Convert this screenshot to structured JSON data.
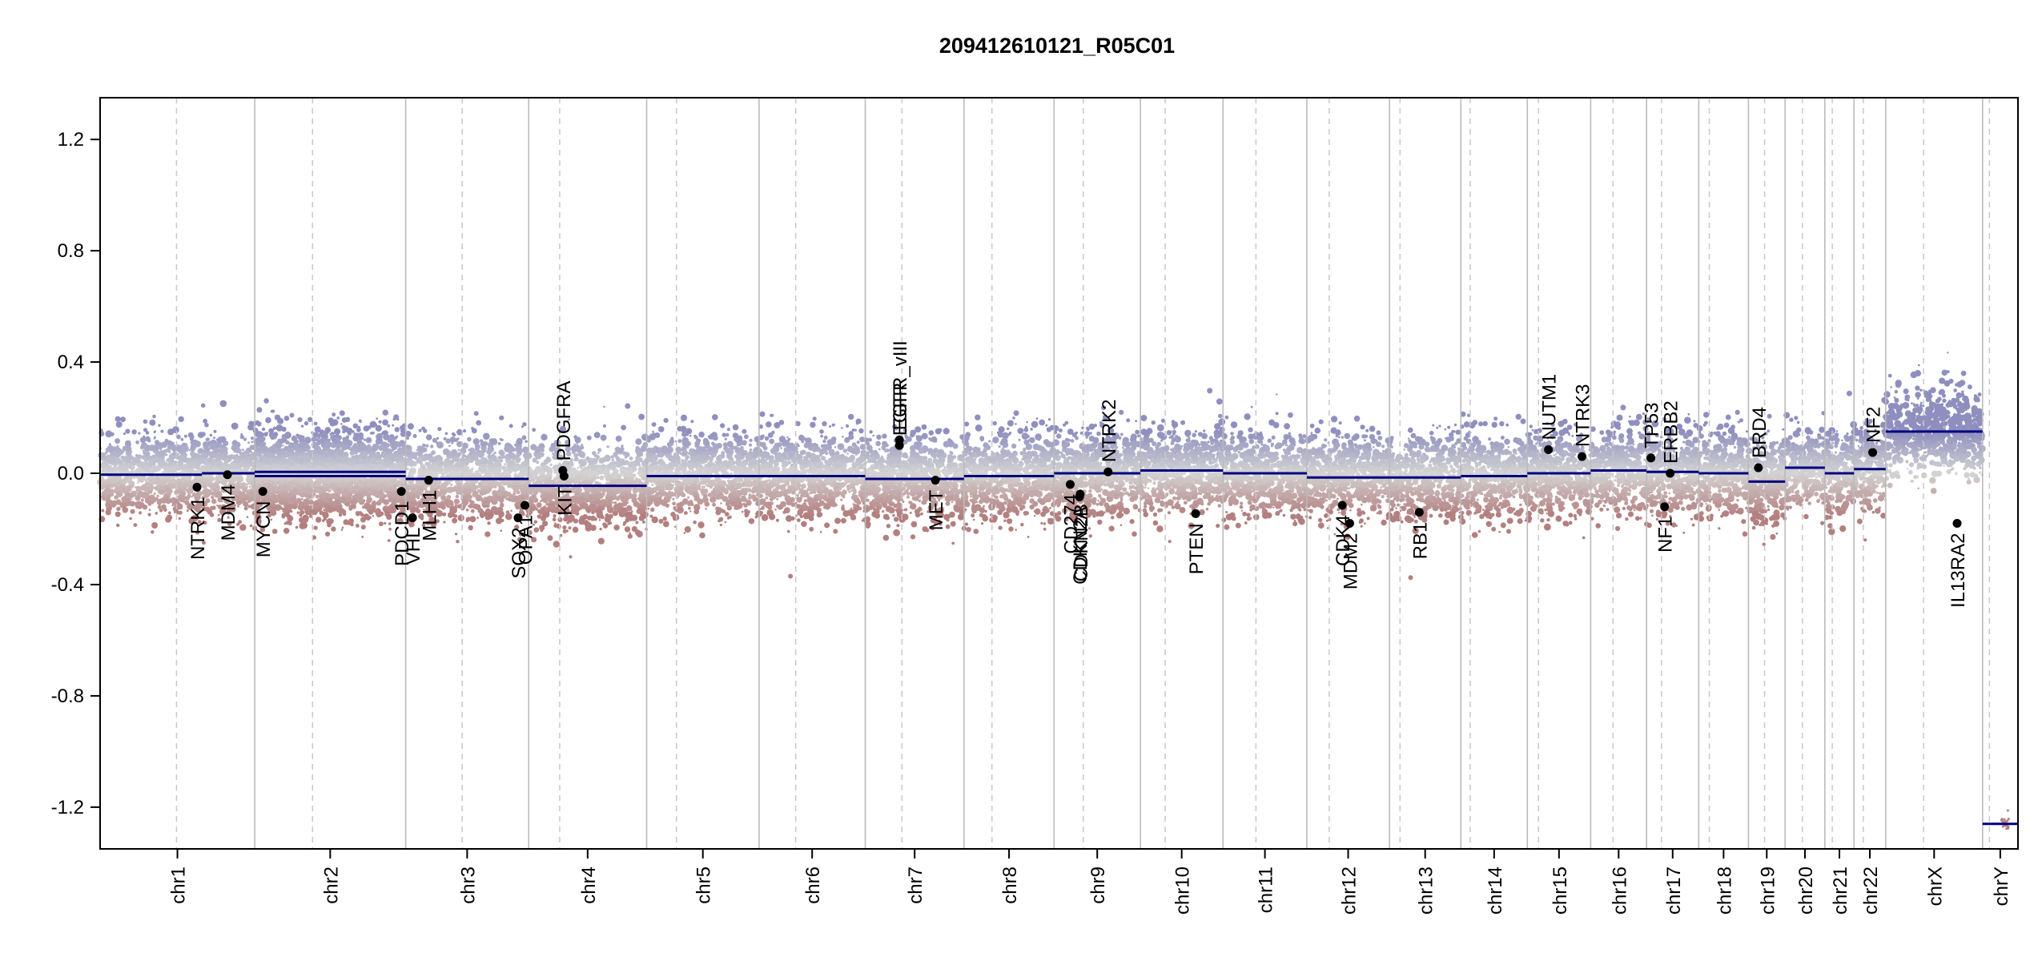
{
  "chart_data": {
    "type": "scatter",
    "title": "209412610121_R05C01",
    "xlabel": "",
    "ylabel": "",
    "ylim": [
      -1.35,
      1.35
    ],
    "yticks": [
      1.2,
      0.8,
      0.4,
      0.0,
      -0.4,
      -0.8,
      -1.2
    ],
    "ytick_labels": [
      "1.2",
      "0.8",
      "0.4",
      "0.0",
      "-0.4",
      "-0.8",
      "-1.2"
    ],
    "grid": false,
    "chromosomes": [
      {
        "name": "chr1",
        "start": 0,
        "end": 249,
        "label": "chr1"
      },
      {
        "name": "chr2",
        "start": 249,
        "end": 492,
        "label": "chr2"
      },
      {
        "name": "chr3",
        "start": 492,
        "end": 690,
        "label": "chr3"
      },
      {
        "name": "chr4",
        "start": 690,
        "end": 880,
        "label": "chr4"
      },
      {
        "name": "chr5",
        "start": 880,
        "end": 1061,
        "label": "chr5"
      },
      {
        "name": "chr6",
        "start": 1061,
        "end": 1232,
        "label": "chr6"
      },
      {
        "name": "chr7",
        "start": 1232,
        "end": 1391,
        "label": "chr7"
      },
      {
        "name": "chr8",
        "start": 1391,
        "end": 1536,
        "label": "chr8"
      },
      {
        "name": "chr9",
        "start": 1536,
        "end": 1675,
        "label": "chr9"
      },
      {
        "name": "chr10",
        "start": 1675,
        "end": 1808,
        "label": "chr10"
      },
      {
        "name": "chr11",
        "start": 1808,
        "end": 1943,
        "label": "chr11"
      },
      {
        "name": "chr12",
        "start": 1943,
        "end": 2076,
        "label": "chr12"
      },
      {
        "name": "chr13",
        "start": 2076,
        "end": 2191,
        "label": "chr13"
      },
      {
        "name": "chr14",
        "start": 2191,
        "end": 2298,
        "label": "chr14"
      },
      {
        "name": "chr15",
        "start": 2298,
        "end": 2400,
        "label": "chr15"
      },
      {
        "name": "chr16",
        "start": 2400,
        "end": 2490,
        "label": "chr16"
      },
      {
        "name": "chr17",
        "start": 2490,
        "end": 2574,
        "label": "chr17"
      },
      {
        "name": "chr18",
        "start": 2574,
        "end": 2654,
        "label": "chr18"
      },
      {
        "name": "chr19",
        "start": 2654,
        "end": 2713,
        "label": "chr19"
      },
      {
        "name": "chr20",
        "start": 2713,
        "end": 2777,
        "label": "chr20"
      },
      {
        "name": "chr21",
        "start": 2777,
        "end": 2824,
        "label": "chr21"
      },
      {
        "name": "chr22",
        "start": 2824,
        "end": 2875,
        "label": "chr22"
      },
      {
        "name": "chrX",
        "start": 2875,
        "end": 3031,
        "label": "chrX"
      },
      {
        "name": "chrY",
        "start": 3031,
        "end": 3088,
        "label": "chrY"
      }
    ],
    "centromeres": [
      123,
      342,
      583,
      740,
      928,
      1120,
      1291,
      1436,
      1583,
      1715,
      1861,
      1979,
      2093,
      2206,
      2316,
      2436,
      2514,
      2591,
      2680,
      2741,
      2789,
      2839,
      2936,
      3042
    ],
    "segments": [
      {
        "chrom": "chr1",
        "start": 0,
        "end": 164,
        "value": -0.005
      },
      {
        "chrom": "chr1",
        "start": 164,
        "end": 249,
        "value": 0.0
      },
      {
        "chrom": "chr2",
        "start": 249,
        "end": 492,
        "value": 0.005
      },
      {
        "chrom": "chr2",
        "start": 249,
        "end": 492,
        "value": -0.01
      },
      {
        "chrom": "chr3",
        "start": 492,
        "end": 690,
        "value": -0.02
      },
      {
        "chrom": "chr4",
        "start": 690,
        "end": 880,
        "value": -0.045
      },
      {
        "chrom": "chr5",
        "start": 880,
        "end": 1061,
        "value": -0.01
      },
      {
        "chrom": "chr6",
        "start": 1061,
        "end": 1232,
        "value": -0.01
      },
      {
        "chrom": "chr7",
        "start": 1232,
        "end": 1391,
        "value": -0.02
      },
      {
        "chrom": "chr8",
        "start": 1391,
        "end": 1536,
        "value": -0.01
      },
      {
        "chrom": "chr9",
        "start": 1536,
        "end": 1675,
        "value": 0.0
      },
      {
        "chrom": "chr10",
        "start": 1675,
        "end": 1808,
        "value": 0.01
      },
      {
        "chrom": "chr11",
        "start": 1808,
        "end": 1943,
        "value": 0.0
      },
      {
        "chrom": "chr12",
        "start": 1943,
        "end": 2076,
        "value": -0.015
      },
      {
        "chrom": "chr13",
        "start": 2076,
        "end": 2191,
        "value": -0.015
      },
      {
        "chrom": "chr14",
        "start": 2191,
        "end": 2298,
        "value": -0.01
      },
      {
        "chrom": "chr15",
        "start": 2298,
        "end": 2400,
        "value": 0.0
      },
      {
        "chrom": "chr16",
        "start": 2400,
        "end": 2490,
        "value": 0.01
      },
      {
        "chrom": "chr17",
        "start": 2490,
        "end": 2574,
        "value": 0.005
      },
      {
        "chrom": "chr18",
        "start": 2574,
        "end": 2654,
        "value": 0.0
      },
      {
        "chrom": "chr19",
        "start": 2654,
        "end": 2713,
        "value": -0.03
      },
      {
        "chrom": "chr20",
        "start": 2713,
        "end": 2777,
        "value": 0.02
      },
      {
        "chrom": "chr21",
        "start": 2777,
        "end": 2824,
        "value": 0.0
      },
      {
        "chrom": "chr22",
        "start": 2824,
        "end": 2875,
        "value": 0.015
      },
      {
        "chrom": "chrX",
        "start": 2875,
        "end": 3031,
        "value": 0.15
      },
      {
        "chrom": "chrY",
        "start": 3031,
        "end": 3088,
        "value": -1.26
      }
    ],
    "genes": [
      {
        "name": "NTRK1",
        "x": 156,
        "value": -0.05,
        "label_side": "below"
      },
      {
        "name": "MDM4",
        "x": 205,
        "value": -0.005,
        "label_side": "below"
      },
      {
        "name": "MYCN",
        "x": 262,
        "value": -0.065,
        "label_side": "below"
      },
      {
        "name": "PDCD1",
        "x": 485,
        "value": -0.065,
        "label_side": "below"
      },
      {
        "name": "VHL",
        "x": 503,
        "value": -0.16,
        "label_side": "below"
      },
      {
        "name": "MLH1",
        "x": 529,
        "value": -0.025,
        "label_side": "below"
      },
      {
        "name": "SOX2",
        "x": 673,
        "value": -0.16,
        "label_side": "below"
      },
      {
        "name": "OPA1",
        "x": 684,
        "value": -0.115,
        "label_side": "below"
      },
      {
        "name": "PDGFRA",
        "x": 745,
        "value": 0.01,
        "label_side": "above"
      },
      {
        "name": "KIT",
        "x": 747,
        "value": -0.01,
        "label_side": "below"
      },
      {
        "name": "EGFR",
        "x": 1287,
        "value": 0.1,
        "label_side": "above"
      },
      {
        "name": "EGFR_vIII",
        "x": 1287,
        "value": 0.12,
        "label_side": "above"
      },
      {
        "name": "MET",
        "x": 1345,
        "value": -0.025,
        "label_side": "below"
      },
      {
        "name": "CD274",
        "x": 1562,
        "value": -0.04,
        "label_side": "below"
      },
      {
        "name": "CDKN2A",
        "x": 1577,
        "value": -0.085,
        "label_side": "below"
      },
      {
        "name": "CDKN2B",
        "x": 1578,
        "value": -0.075,
        "label_side": "below"
      },
      {
        "name": "NTRK2",
        "x": 1623,
        "value": 0.005,
        "label_side": "above"
      },
      {
        "name": "PTEN",
        "x": 1764,
        "value": -0.145,
        "label_side": "below"
      },
      {
        "name": "CDK4",
        "x": 2000,
        "value": -0.115,
        "label_side": "below"
      },
      {
        "name": "MDM2",
        "x": 2012,
        "value": -0.18,
        "label_side": "below"
      },
      {
        "name": "RB1",
        "x": 2124,
        "value": -0.14,
        "label_side": "below"
      },
      {
        "name": "NUTM1",
        "x": 2332,
        "value": 0.085,
        "label_side": "above"
      },
      {
        "name": "NTRK3",
        "x": 2386,
        "value": 0.06,
        "label_side": "above"
      },
      {
        "name": "TP53",
        "x": 2497,
        "value": 0.055,
        "label_side": "above"
      },
      {
        "name": "ERBB2",
        "x": 2528,
        "value": 0.0,
        "label_side": "above"
      },
      {
        "name": "NF1",
        "x": 2519,
        "value": -0.12,
        "label_side": "below"
      },
      {
        "name": "BRD4",
        "x": 2670,
        "value": 0.02,
        "label_side": "above"
      },
      {
        "name": "NF2",
        "x": 2854,
        "value": 0.075,
        "label_side": "above"
      },
      {
        "name": "IL13RA2",
        "x": 2990,
        "value": -0.18,
        "label_side": "below"
      }
    ],
    "colors": {
      "gain": "#8f8fbf",
      "neutral": "#d4d4d4",
      "loss": "#b37f7f",
      "segment": "#000080",
      "gene_dot": "#000000",
      "boundary": "#bbbbbb",
      "centromere": "#c8c8c8"
    }
  }
}
